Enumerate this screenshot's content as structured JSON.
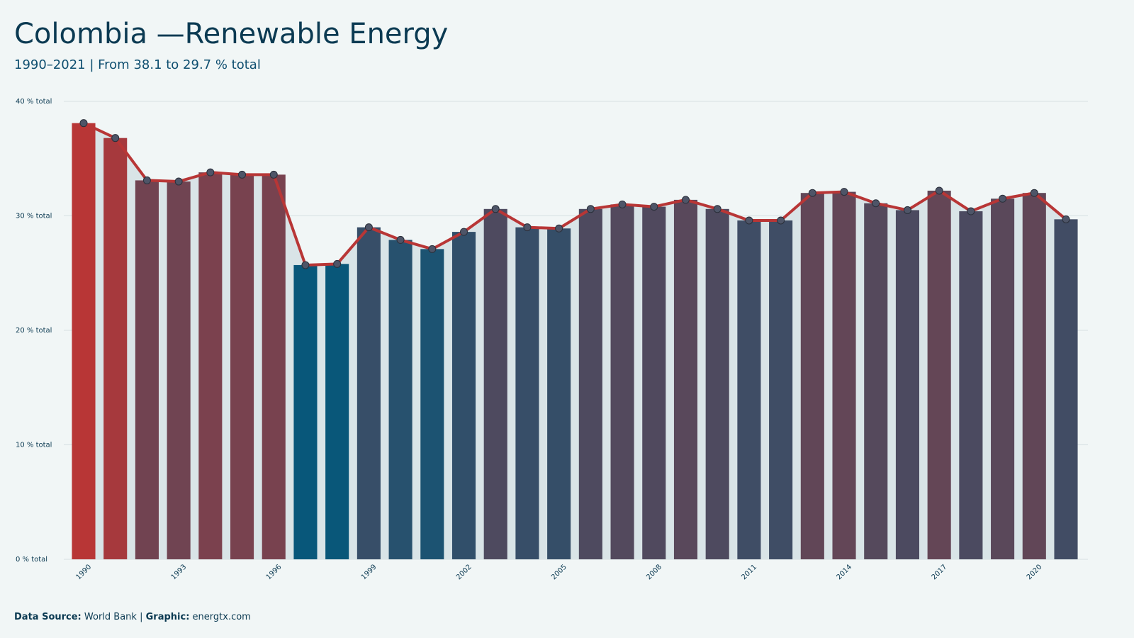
{
  "chart_data": {
    "type": "bar-line",
    "title": "Colombia —Renewable Energy",
    "subtitle": "1990–2021 | From 38.1 to 29.7 % total",
    "footer": {
      "source_label": "Data Source:",
      "source": "World Bank",
      "separator": "|",
      "graphic_label": "Graphic:",
      "graphic": "energtx.com"
    },
    "x": [
      1990,
      1991,
      1992,
      1993,
      1994,
      1995,
      1996,
      1997,
      1998,
      1999,
      2000,
      2001,
      2002,
      2003,
      2004,
      2005,
      2006,
      2007,
      2008,
      2009,
      2010,
      2011,
      2012,
      2013,
      2014,
      2015,
      2016,
      2017,
      2018,
      2019,
      2020,
      2021
    ],
    "values": [
      38.1,
      36.8,
      33.1,
      33.0,
      33.8,
      33.6,
      33.6,
      25.7,
      25.8,
      29.0,
      27.9,
      27.1,
      28.6,
      30.6,
      29.0,
      28.9,
      30.6,
      31.0,
      30.8,
      31.4,
      30.6,
      29.6,
      29.6,
      32.0,
      32.1,
      31.1,
      30.5,
      32.2,
      30.4,
      31.5,
      32.0,
      29.7
    ],
    "xticks": [
      1990,
      1993,
      1996,
      1999,
      2002,
      2005,
      2008,
      2011,
      2014,
      2017,
      2020
    ],
    "ylim": [
      0,
      40
    ],
    "yticks": [
      {
        "value": 0,
        "label": "0 % total"
      },
      {
        "value": 10,
        "label": "10 % total"
      },
      {
        "value": 20,
        "label": "20 % total"
      },
      {
        "value": 30,
        "label": "30 % total"
      },
      {
        "value": 40,
        "label": "40 % total"
      }
    ],
    "grid": true,
    "color_low": "#08577a",
    "color_high": "#b83636",
    "line_color": "#b83636",
    "area_color": "#d9e4e7",
    "marker_color": "#4e5568"
  }
}
